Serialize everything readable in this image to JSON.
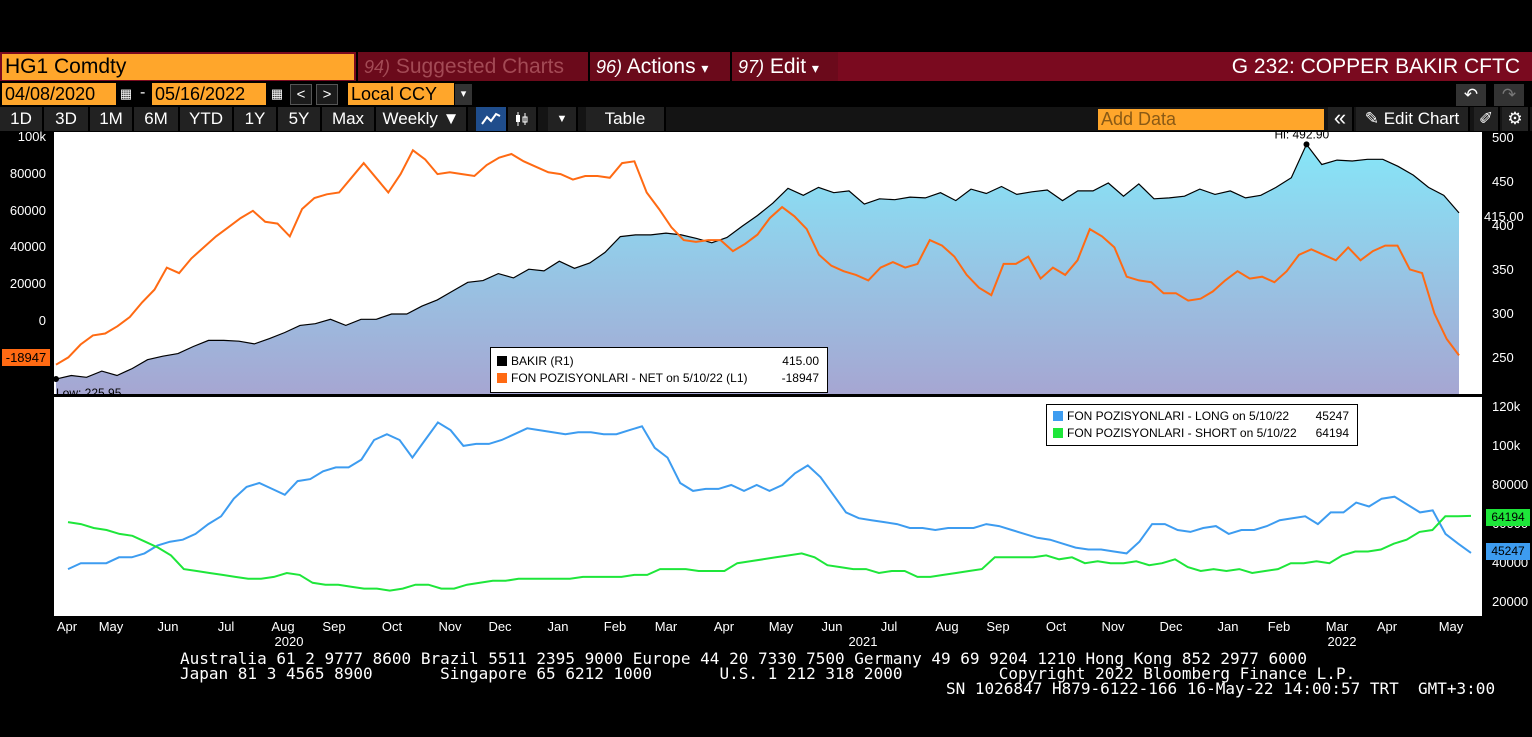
{
  "header": {
    "ticker": "HG1 Comdty",
    "suggested": {
      "num": "94)",
      "label": "Suggested Charts"
    },
    "actions": {
      "num": "96)",
      "label": "Actions",
      "arrow": "▾"
    },
    "edit": {
      "num": "97)",
      "label": "Edit",
      "arrow": "▾"
    },
    "title": "G 232: COPPER BAKIR CFTC"
  },
  "dates": {
    "start": "04/08/2020",
    "sep": "-",
    "end": "05/16/2022",
    "currency": "Local CCY",
    "prev": "<",
    "next": ">",
    "dropdown": "▾"
  },
  "toolbar": {
    "periods": [
      "1D",
      "3D",
      "1M",
      "6M",
      "YTD",
      "1Y",
      "5Y",
      "Max"
    ],
    "frequency": "Weekly ▼",
    "table": "Table",
    "add_data_placeholder": "Add Data",
    "collapse": "«",
    "edit_chart": "Edit Chart"
  },
  "colors": {
    "orange": "#ff6a13",
    "black": "#000000",
    "blue": "#3d9cf0",
    "green": "#1ee63a",
    "ticker_bg": "#ffa62b",
    "title_bg": "#7a0a1f"
  },
  "chart_data": [
    {
      "type": "area+line",
      "legend": [
        {
          "name": "BAKIR (R1)",
          "value": "415.00"
        },
        {
          "name": "FON POZISYONLARI - NET on 5/10/22 (L1)",
          "value": "-18947"
        }
      ],
      "annotations": {
        "hi": "Hi: 492.90",
        "low": "Low: 225.95",
        "last_price": "415.00",
        "last_net": "-18947"
      },
      "left_axis": {
        "ticks": [
          "100k",
          "80000",
          "60000",
          "40000",
          "20000",
          "0"
        ],
        "range": [
          -40000,
          103000
        ]
      },
      "right_axis": {
        "ticks": [
          "500",
          "450",
          "400",
          "350",
          "300",
          "250"
        ],
        "range": [
          209,
          507
        ]
      },
      "price": [
        226,
        230,
        228,
        235,
        230,
        238,
        248,
        252,
        255,
        263,
        270,
        270,
        269,
        266,
        272,
        279,
        287,
        289,
        294,
        287,
        294,
        294,
        300,
        300,
        309,
        316,
        326,
        336,
        338,
        346,
        341,
        351,
        349,
        360,
        352,
        358,
        370,
        388,
        390,
        390,
        392,
        390,
        386,
        381,
        387,
        400,
        412,
        426,
        443,
        435,
        444,
        438,
        440,
        425,
        431,
        430,
        433,
        432,
        438,
        429,
        442,
        437,
        445,
        436,
        439,
        441,
        429,
        440,
        440,
        449,
        434,
        448,
        431,
        432,
        434,
        442,
        436,
        440,
        432,
        435,
        444,
        455,
        492.9,
        470,
        475,
        474,
        476,
        476,
        468,
        458,
        444,
        435,
        415
      ],
      "net": [
        -24000,
        -20000,
        -13000,
        -8000,
        -7000,
        -3000,
        2000,
        10000,
        17000,
        29000,
        26000,
        34000,
        40000,
        46000,
        51000,
        56000,
        60000,
        54000,
        53000,
        46000,
        61000,
        67000,
        69000,
        70000,
        78000,
        86000,
        78000,
        70000,
        80000,
        93000,
        88000,
        80000,
        81000,
        80000,
        79000,
        85000,
        89000,
        91000,
        87000,
        84000,
        81000,
        80000,
        77000,
        79000,
        79000,
        78000,
        86000,
        87000,
        70000,
        61000,
        51000,
        44000,
        43000,
        44000,
        44000,
        38000,
        42000,
        47000,
        56000,
        62000,
        57000,
        50000,
        36000,
        30000,
        27000,
        25000,
        22000,
        29000,
        32000,
        29000,
        31000,
        44000,
        41000,
        35000,
        25000,
        18000,
        14000,
        31000,
        31000,
        35000,
        23000,
        29000,
        25000,
        33000,
        50000,
        46000,
        40000,
        24000,
        22000,
        21000,
        15000,
        15000,
        11000,
        12000,
        16000,
        22000,
        27000,
        23000,
        24000,
        21000,
        27000,
        36000,
        39000,
        36000,
        33000,
        40000,
        33000,
        38000,
        41000,
        41000,
        28000,
        26000,
        4000,
        -10000,
        -18947
      ]
    },
    {
      "type": "line",
      "legend": [
        {
          "name": "FON POZISYONLARI - LONG on 5/10/22",
          "value": "45247"
        },
        {
          "name": "FON POZISYONLARI - SHORT on 5/10/22",
          "value": "64194"
        }
      ],
      "right_axis": {
        "ticks": [
          "120k",
          "100k",
          "80000",
          "60000",
          "40000",
          "20000"
        ],
        "range": [
          13000,
          125000
        ]
      },
      "long": [
        37000,
        40000,
        40000,
        40000,
        43000,
        43000,
        45000,
        49000,
        51000,
        52000,
        55000,
        60000,
        64000,
        73000,
        79000,
        81000,
        78000,
        75000,
        82000,
        83000,
        87000,
        89000,
        89000,
        93000,
        103000,
        106000,
        103000,
        94000,
        103000,
        112000,
        108000,
        100000,
        101000,
        101000,
        103000,
        106000,
        109000,
        108000,
        107000,
        106000,
        107000,
        107000,
        106000,
        106000,
        108000,
        110000,
        99000,
        94000,
        81000,
        77000,
        78000,
        78000,
        80000,
        77000,
        80000,
        77000,
        80000,
        86000,
        90000,
        84000,
        75000,
        66000,
        63000,
        62000,
        61000,
        60000,
        58000,
        58000,
        57000,
        58000,
        58000,
        58000,
        60000,
        59000,
        57000,
        55000,
        53000,
        52000,
        50000,
        48000,
        47000,
        47000,
        46000,
        45000,
        51000,
        60000,
        60000,
        57000,
        56000,
        58000,
        59000,
        55000,
        57000,
        57000,
        59000,
        62000,
        63000,
        64000,
        60000,
        66000,
        66000,
        71000,
        69000,
        73000,
        74000,
        70000,
        66000,
        67000,
        55000,
        50000,
        45247
      ],
      "short": [
        61000,
        60000,
        58000,
        57000,
        55000,
        54000,
        51000,
        48000,
        44000,
        37000,
        36000,
        35000,
        34000,
        33000,
        32000,
        32000,
        33000,
        35000,
        34000,
        30000,
        29000,
        29000,
        28000,
        27000,
        27000,
        26000,
        27000,
        29000,
        29000,
        27000,
        27000,
        29000,
        30000,
        31000,
        31000,
        32000,
        32000,
        32000,
        32000,
        32000,
        33000,
        33000,
        33000,
        33000,
        34000,
        34000,
        37000,
        37000,
        37000,
        36000,
        36000,
        36000,
        40000,
        41000,
        42000,
        43000,
        44000,
        45000,
        43000,
        39000,
        38000,
        37000,
        37000,
        35000,
        36000,
        36000,
        33000,
        33000,
        34000,
        35000,
        36000,
        37000,
        43000,
        43000,
        43000,
        43000,
        44000,
        42000,
        43000,
        40000,
        41000,
        40000,
        40000,
        41000,
        39000,
        40000,
        42000,
        38000,
        36000,
        37000,
        36000,
        37000,
        35000,
        36000,
        37000,
        40000,
        40000,
        41000,
        40000,
        44000,
        46000,
        46000,
        47000,
        50000,
        52000,
        56000,
        57000,
        64000,
        64000,
        64194
      ]
    }
  ],
  "x_axis": {
    "months": [
      "Apr",
      "May",
      "Jun",
      "Jul",
      "Aug",
      "Sep",
      "Oct",
      "Nov",
      "Dec",
      "Jan",
      "Feb",
      "Mar",
      "Apr",
      "May",
      "Jun",
      "Jul",
      "Aug",
      "Sep",
      "Oct",
      "Nov",
      "Dec",
      "Jan",
      "Feb",
      "Mar",
      "Apr",
      "May"
    ],
    "years": [
      "2020",
      "2021",
      "2022"
    ]
  },
  "footer": {
    "line1": "Australia 61 2 9777 8600 Brazil 5511 2395 9000 Europe 44 20 7330 7500 Germany 49 69 9204 1210 Hong Kong 852 2977 6000",
    "line2": "Japan 81 3 4565 8900       Singapore 65 6212 1000       U.S. 1 212 318 2000          Copyright 2022 Bloomberg Finance L.P.",
    "line3": "SN 1026847 H879-6122-166 16-May-22 14:00:57 TRT  GMT+3:00"
  }
}
